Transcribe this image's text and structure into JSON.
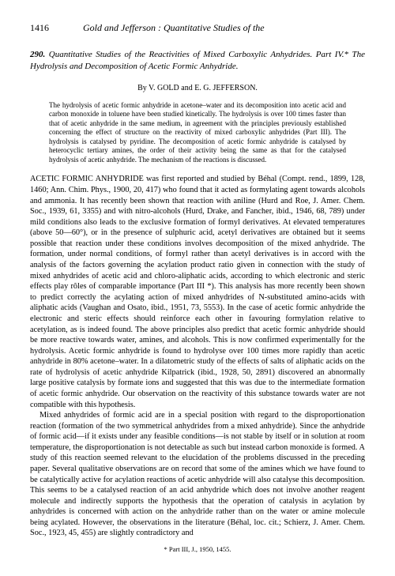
{
  "header": {
    "page_number": "1416",
    "running_title": "Gold and Jefferson : Quantitative Studies of the"
  },
  "article": {
    "number": "290.",
    "title": "Quantitative Studies of the Reactivities of Mixed Carboxylic Anhydrides. Part IV.* The Hydrolysis and Decomposition of Acetic Formic Anhydride.",
    "authors": "By V. GOLD and E. G. JEFFERSON.",
    "abstract": "The hydrolysis of acetic formic anhydride in acetone–water and its decomposition into acetic acid and carbon monoxide in toluene have been studied kinetically. The hydrolysis is over 100 times faster than that of acetic anhydride in the same medium, in agreement with the principles previously established concerning the effect of structure on the reactivity of mixed carboxylic anhydrides (Part III). The hydrolysis is catalysed by pyridine. The decomposition of acetic formic anhydride is catalysed by heterocyclic tertiary amines, the order of their activity being the same as that for the catalysed hydrolysis of acetic anhydride. The mechanism of the reactions is discussed.",
    "body_para1": "ACETIC FORMIC ANHYDRIDE was first reported and studied by Béhal (Compt. rend., 1899, 128, 1460; Ann. Chim. Phys., 1900, 20, 417) who found that it acted as formylating agent towards alcohols and ammonia. It has recently been shown that reaction with aniline (Hurd and Roe, J. Amer. Chem. Soc., 1939, 61, 3355) and with nitro-alcohols (Hurd, Drake, and Fancher, ibid., 1946, 68, 789) under mild conditions also leads to the exclusive formation of formyl derivatives. At elevated temperatures (above 50—60°), or in the presence of sulphuric acid, acetyl derivatives are obtained but it seems possible that reaction under these conditions involves decomposition of the mixed anhydride. The formation, under normal conditions, of formyl rather than acetyl derivatives is in accord with the analysis of the factors governing the acylation product ratio given in connection with the study of mixed anhydrides of acetic acid and chloro-aliphatic acids, according to which electronic and steric effects play rôles of comparable importance (Part III *). This analysis has more recently been shown to predict correctly the acylating action of mixed anhydrides of N-substituted amino-acids with aliphatic acids (Vaughan and Osato, ibid., 1951, 73, 5553). In the case of acetic formic anhydride the electronic and steric effects should reinforce each other in favouring formylation relative to acetylation, as is indeed found. The above principles also predict that acetic formic anhydride should be more reactive towards water, amines, and alcohols. This is now confirmed experimentally for the hydrolysis. Acetic formic anhydride is found to hydrolyse over 100 times more rapidly than acetic anhydride in 80% acetone–water. In a dilatometric study of the effects of salts of aliphatic acids on the rate of hydrolysis of acetic anhydride Kilpatrick (ibid., 1928, 50, 2891) discovered an abnormally large positive catalysis by formate ions and suggested that this was due to the intermediate formation of acetic formic anhydride. Our observation on the reactivity of this substance towards water are not compatible with this hypothesis.",
    "body_para2": "Mixed anhydrides of formic acid are in a special position with regard to the disproportionation reaction (formation of the two symmetrical anhydrides from a mixed anhydride). Since the anhydride of formic acid—if it exists under any feasible conditions—is not stable by itself or in solution at room temperature, the disproportionation is not detectable as such but instead carbon monoxide is formed. A study of this reaction seemed relevant to the elucidation of the problems discussed in the preceding paper. Several qualitative observations are on record that some of the amines which we have found to be catalytically active for acylation reactions of acetic anhydride will also catalyse this decomposition. This seems to be a catalysed reaction of an acid anhydride which does not involve another reagent molecule and indirectly supports the hypothesis that the operation of catalysis in acylation by anhydrides is concerned with action on the anhydride rather than on the water or amine molecule being acylated. However, the observations in the literature (Béhal, loc. cit.; Schierz, J. Amer. Chem. Soc., 1923, 45, 455) are slightly contradictory and",
    "footnote": "* Part III, J., 1950, 1455."
  }
}
